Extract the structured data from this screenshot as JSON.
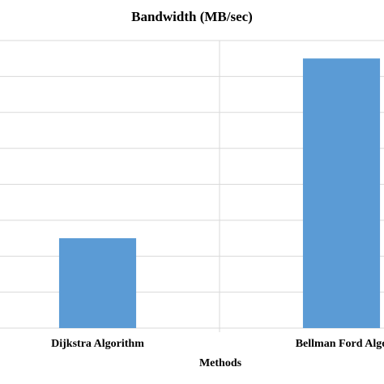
{
  "chart_data": {
    "type": "bar",
    "title": "Bandwidth (MB/sec)",
    "x_label": "Methods",
    "categories": [
      "Dijkstra Algorithm",
      "Bellman Ford Algo"
    ],
    "values": [
      2.5,
      7.5
    ],
    "color": "#5b9bd5",
    "ylim": [
      0,
      8
    ],
    "yticks": [
      0,
      1,
      2,
      3,
      4,
      5,
      6,
      7,
      8
    ],
    "grid": true
  }
}
